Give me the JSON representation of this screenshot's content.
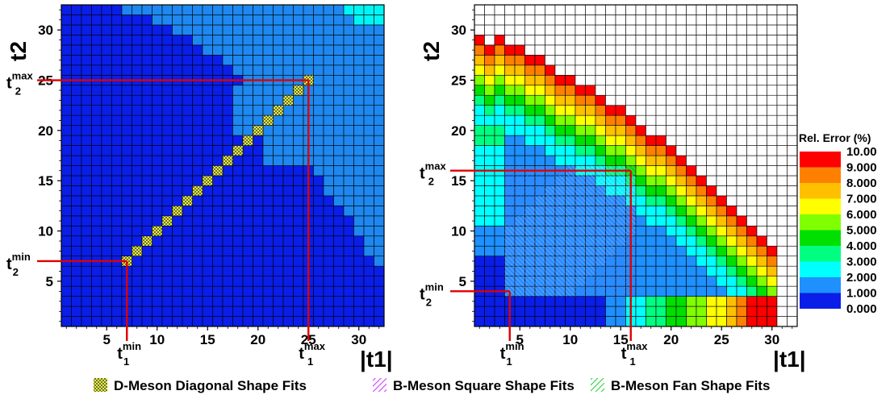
{
  "chart_data": [
    {
      "type": "heatmap",
      "description_of_grid": "t1 and t2 run 1..32; cell colors show fit region classification",
      "xlabel": "|t1|",
      "ylabel": "t2",
      "xticks": [
        5,
        10,
        15,
        20,
        25,
        30
      ],
      "yticks": [
        5,
        10,
        15,
        20,
        25,
        30
      ],
      "xlim": [
        1,
        32
      ],
      "ylim": [
        1,
        32
      ],
      "diagonal_shape_range": [
        7,
        25
      ],
      "annotations": {
        "t1_min": {
          "base": "t",
          "sub": "1",
          "sup": "min",
          "value": 7
        },
        "t1_max": {
          "base": "t",
          "sub": "1",
          "sup": "max",
          "value": 25
        },
        "t2_min": {
          "base": "t",
          "sub": "2",
          "sup": "min",
          "value": 7
        },
        "t2_max": {
          "base": "t",
          "sub": "2",
          "sup": "max",
          "value": 25
        }
      },
      "colors": {
        "low": "#0a1ee8",
        "mid": "#1e88f0",
        "high": "#00f6f6",
        "diag": "#f6ff4a"
      }
    },
    {
      "type": "heatmap",
      "xlabel": "|t1|",
      "ylabel": "t2",
      "xticks": [
        5,
        10,
        15,
        20,
        25,
        30
      ],
      "yticks": [
        5,
        10,
        15,
        20,
        25,
        30
      ],
      "xlim": [
        1,
        32
      ],
      "ylim": [
        1,
        32
      ],
      "square_shape_range": [
        4,
        16
      ],
      "annotations": {
        "t1_min": {
          "base": "t",
          "sub": "1",
          "sup": "min",
          "value": 4
        },
        "t1_max": {
          "base": "t",
          "sub": "1",
          "sup": "max",
          "value": 16
        },
        "t2_min": {
          "base": "t",
          "sub": "2",
          "sup": "min",
          "value": 4
        },
        "t2_max": {
          "base": "t",
          "sub": "2",
          "sup": "max",
          "value": 16
        }
      },
      "colorbar": {
        "title": "Rel. Error (%)",
        "levels": [
          "10.00",
          "9.000",
          "8.000",
          "7.000",
          "6.000",
          "5.000",
          "4.000",
          "3.000",
          "2.000",
          "1.000",
          "0.000"
        ],
        "colors": [
          "#ff0000",
          "#ff8000",
          "#ffc000",
          "#ffff00",
          "#80ff00",
          "#00e000",
          "#00ff80",
          "#00ffff",
          "#1e90ff",
          "#0a1ee8"
        ]
      }
    }
  ],
  "legend": {
    "items": [
      {
        "label": "D-Meson Diagonal Shape Fits",
        "color": "#f6ff4a",
        "pattern": "diag"
      },
      {
        "label": "B-Meson Square Shape Fits",
        "color": "#d040ff",
        "pattern": "square"
      },
      {
        "label": "B-Meson Fan Shape Fits",
        "color": "#30d040",
        "pattern": "fan"
      }
    ]
  }
}
